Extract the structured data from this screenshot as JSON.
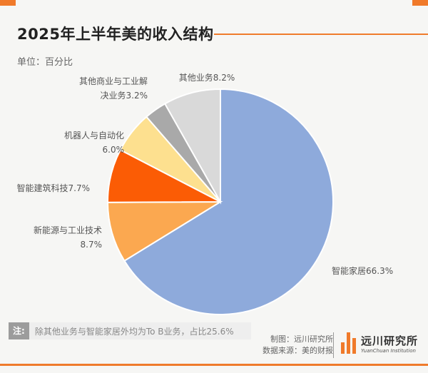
{
  "header": {
    "title": "2025年上半年美的收入结构",
    "unit": "单位：百分比"
  },
  "chart_data": {
    "type": "pie",
    "title": "2025年上半年美的收入结构",
    "slices": [
      {
        "name": "智能家居",
        "value": 66.3,
        "label": "智能家居66.3%",
        "color": "#8eaadb"
      },
      {
        "name": "新能源与工业技术",
        "value": 8.7,
        "label_lines": [
          "新能源与工业技术",
          "8.7%"
        ],
        "color": "#fba850"
      },
      {
        "name": "智能建筑科技",
        "value": 7.7,
        "label": "智能建筑科技7.7%",
        "color": "#fb5c05"
      },
      {
        "name": "机器人与自动化",
        "value": 6.0,
        "label_lines": [
          "机器人与自动化",
          "6.0%"
        ],
        "color": "#fde08f"
      },
      {
        "name": "其他商业与工业解决业务",
        "value": 3.2,
        "label_lines": [
          "其他商业与工业解",
          "决业务3.2%"
        ],
        "color": "#a9a9a9"
      },
      {
        "name": "其他业务",
        "value": 8.2,
        "label": "其他业务8.2%",
        "color": "#d9d9d9"
      }
    ]
  },
  "footer": {
    "note_tag": "注:",
    "note_text": "除其他业务与智能家居外均为To B业务，占比25.6%",
    "credit_made": "制图：远川研究所",
    "credit_source": "数据来源：美的财报",
    "logo_cn": "远川研究所",
    "logo_en": "YuanChuan Institution"
  }
}
